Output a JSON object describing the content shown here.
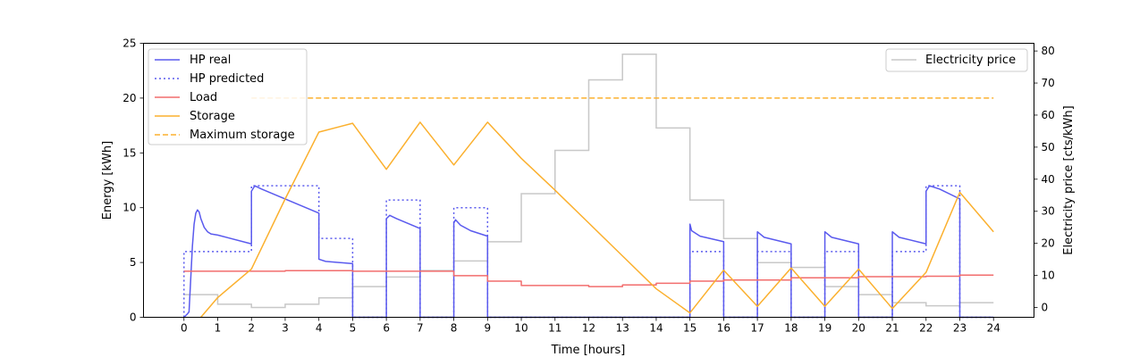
{
  "chart_data": {
    "type": "line",
    "title": "",
    "xlabel": "Time [hours]",
    "ylabel": "Energy [kWh]",
    "y2label": "Electricity price [cts/kWh]",
    "xlim": [
      -1.2,
      25.2
    ],
    "ylim": [
      0,
      25
    ],
    "y2lim": [
      -3.07,
      82.4
    ],
    "xticks": [
      "0",
      "1",
      "2",
      "3",
      "4",
      "5",
      "6",
      "7",
      "8",
      "9",
      "10",
      "11",
      "12",
      "13",
      "14",
      "15",
      "16",
      "17",
      "18",
      "19",
      "20",
      "21",
      "22",
      "23",
      "24"
    ],
    "yticks": [
      "0",
      "5",
      "10",
      "15",
      "20",
      "25"
    ],
    "y2ticks": [
      "0",
      "10",
      "20",
      "30",
      "40",
      "50",
      "60",
      "70",
      "80"
    ],
    "grid": false,
    "legend_left_position": "top-left",
    "legend_right_position": "top-right",
    "colors": {
      "hp_real": "#5a5aee",
      "hp_predicted": "#5a5aee",
      "load": "#f26d6d",
      "storage": "#fbb02e",
      "max_storage": "#fbb02e",
      "price": "#c8c8c8"
    },
    "series": [
      {
        "name": "HP real",
        "axis": "left",
        "style": "solid",
        "color_key": "hp_real",
        "points": [
          [
            0,
            0
          ],
          [
            0.1,
            0.3
          ],
          [
            0.15,
            0.5
          ],
          [
            0.2,
            3.5
          ],
          [
            0.25,
            6.5
          ],
          [
            0.3,
            8.5
          ],
          [
            0.35,
            9.5
          ],
          [
            0.4,
            9.8
          ],
          [
            0.45,
            9.6
          ],
          [
            0.5,
            9.0
          ],
          [
            0.6,
            8.2
          ],
          [
            0.7,
            7.8
          ],
          [
            0.8,
            7.6
          ],
          [
            1.0,
            7.5
          ],
          [
            2.0,
            6.7
          ],
          [
            2.0,
            11.5
          ],
          [
            2.1,
            12.0
          ],
          [
            2.3,
            11.7
          ],
          [
            3.0,
            10.8
          ],
          [
            4.0,
            9.5
          ],
          [
            4.0,
            5.3
          ],
          [
            4.2,
            5.1
          ],
          [
            5.0,
            4.9
          ],
          [
            5.0,
            0
          ],
          [
            6.0,
            0
          ],
          [
            6.0,
            9.0
          ],
          [
            6.1,
            9.3
          ],
          [
            6.3,
            9.0
          ],
          [
            7.0,
            8.1
          ],
          [
            7.0,
            0
          ],
          [
            8.0,
            0
          ],
          [
            8.0,
            8.6
          ],
          [
            8.05,
            8.9
          ],
          [
            8.2,
            8.4
          ],
          [
            8.5,
            7.9
          ],
          [
            9.0,
            7.4
          ],
          [
            9.0,
            0
          ],
          [
            15.0,
            0
          ],
          [
            15.0,
            8.5
          ],
          [
            15.05,
            7.9
          ],
          [
            15.3,
            7.4
          ],
          [
            16.0,
            6.9
          ],
          [
            16.0,
            0
          ],
          [
            17.0,
            0
          ],
          [
            17.0,
            7.8
          ],
          [
            17.2,
            7.3
          ],
          [
            18.0,
            6.7
          ],
          [
            18.0,
            0
          ],
          [
            19.0,
            0
          ],
          [
            19.0,
            7.8
          ],
          [
            19.2,
            7.3
          ],
          [
            20.0,
            6.7
          ],
          [
            20.0,
            0
          ],
          [
            21.0,
            0
          ],
          [
            21.0,
            7.8
          ],
          [
            21.2,
            7.3
          ],
          [
            22.0,
            6.7
          ],
          [
            22.0,
            11.5
          ],
          [
            22.1,
            12.0
          ],
          [
            22.4,
            11.7
          ],
          [
            23.0,
            10.8
          ],
          [
            23.0,
            0
          ],
          [
            24.0,
            0
          ]
        ]
      },
      {
        "name": "HP predicted",
        "axis": "left",
        "style": "dotted",
        "color_key": "hp_predicted",
        "points": [
          [
            0,
            0
          ],
          [
            0,
            6
          ],
          [
            2,
            6
          ],
          [
            2,
            12
          ],
          [
            4,
            12
          ],
          [
            4,
            7.2
          ],
          [
            5,
            7.2
          ],
          [
            5,
            0
          ],
          [
            6,
            0
          ],
          [
            6,
            10.7
          ],
          [
            7,
            10.7
          ],
          [
            7,
            0
          ],
          [
            8,
            0
          ],
          [
            8,
            10
          ],
          [
            9,
            10
          ],
          [
            9,
            0
          ],
          [
            15,
            0
          ],
          [
            15,
            6
          ],
          [
            16,
            6
          ],
          [
            16,
            0
          ],
          [
            17,
            0
          ],
          [
            17,
            6
          ],
          [
            18,
            6
          ],
          [
            18,
            0
          ],
          [
            19,
            0
          ],
          [
            19,
            6
          ],
          [
            20,
            6
          ],
          [
            20,
            0
          ],
          [
            21,
            0
          ],
          [
            21,
            6
          ],
          [
            22,
            6
          ],
          [
            22,
            12
          ],
          [
            23,
            12
          ],
          [
            23,
            0
          ],
          [
            24,
            0
          ]
        ]
      },
      {
        "name": "Load",
        "axis": "left",
        "style": "solid",
        "color_key": "load",
        "points": [
          [
            0,
            4.2
          ],
          [
            3,
            4.2
          ],
          [
            3,
            4.25
          ],
          [
            5,
            4.25
          ],
          [
            5,
            4.2
          ],
          [
            8,
            4.2
          ],
          [
            8,
            3.8
          ],
          [
            9,
            3.8
          ],
          [
            9,
            3.3
          ],
          [
            10,
            3.3
          ],
          [
            10,
            2.9
          ],
          [
            12,
            2.9
          ],
          [
            12,
            2.8
          ],
          [
            13,
            2.8
          ],
          [
            13,
            2.95
          ],
          [
            14,
            2.95
          ],
          [
            14,
            3.1
          ],
          [
            15,
            3.1
          ],
          [
            15,
            3.3
          ],
          [
            16,
            3.3
          ],
          [
            16,
            3.4
          ],
          [
            18,
            3.4
          ],
          [
            18,
            3.6
          ],
          [
            20,
            3.6
          ],
          [
            20,
            3.7
          ],
          [
            22,
            3.7
          ],
          [
            22,
            3.75
          ],
          [
            23,
            3.75
          ],
          [
            23,
            3.85
          ],
          [
            24,
            3.85
          ]
        ]
      },
      {
        "name": "Storage",
        "axis": "left",
        "style": "solid",
        "color_key": "storage",
        "points": [
          [
            0.5,
            0
          ],
          [
            1,
            1.8
          ],
          [
            2,
            4.4
          ],
          [
            3,
            10.8
          ],
          [
            4,
            16.9
          ],
          [
            5,
            17.7
          ],
          [
            6,
            13.5
          ],
          [
            7,
            17.8
          ],
          [
            8,
            13.9
          ],
          [
            9,
            17.8
          ],
          [
            10,
            14.5
          ],
          [
            11,
            11.6
          ],
          [
            12,
            8.6
          ],
          [
            13,
            5.6
          ],
          [
            14,
            2.6
          ],
          [
            15,
            0.4
          ],
          [
            16,
            4.3
          ],
          [
            17,
            1.0
          ],
          [
            18,
            4.5
          ],
          [
            19,
            1.0
          ],
          [
            20,
            4.4
          ],
          [
            21,
            0.8
          ],
          [
            22,
            4.1
          ],
          [
            23,
            11.4
          ],
          [
            24,
            7.8
          ]
        ]
      },
      {
        "name": "Maximum storage",
        "axis": "left",
        "style": "dashed",
        "color_key": "max_storage",
        "points": [
          [
            2,
            20
          ],
          [
            24,
            20
          ]
        ]
      },
      {
        "name": "Electricity price",
        "axis": "right",
        "style": "step",
        "color_key": "price",
        "x": [
          0,
          1,
          2,
          3,
          4,
          5,
          6,
          7,
          8,
          9,
          10,
          11,
          12,
          13,
          14,
          15,
          16,
          17,
          18,
          19,
          20,
          21,
          22,
          23,
          24
        ],
        "values": [
          4,
          1,
          0,
          1,
          3,
          6.5,
          9.5,
          11.5,
          14.5,
          20.5,
          35.5,
          49,
          71,
          79,
          56,
          33.5,
          21.5,
          14,
          12.5,
          6.5,
          4,
          1.5,
          0.5,
          1.5,
          1.5
        ]
      }
    ]
  }
}
